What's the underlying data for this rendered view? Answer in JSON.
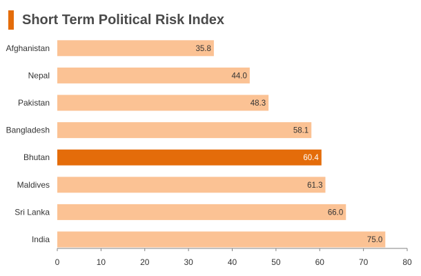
{
  "chart_data": {
    "type": "bar",
    "orientation": "horizontal",
    "title": "Short Term Political Risk Index",
    "categories": [
      "Afghanistan",
      "Nepal",
      "Pakistan",
      "Bangladesh",
      "Bhutan",
      "Maldives",
      "Sri Lanka",
      "India"
    ],
    "values": [
      35.8,
      44.0,
      48.3,
      58.1,
      60.4,
      61.3,
      66.0,
      75.0
    ],
    "value_labels": [
      "35.8",
      "44.0",
      "48.3",
      "58.1",
      "60.4",
      "61.3",
      "66.0",
      "75.0"
    ],
    "highlight": "Bhutan",
    "xlim": [
      0,
      80
    ],
    "xticks": [
      0,
      10,
      20,
      30,
      40,
      50,
      60,
      70,
      80
    ],
    "xlabel": "",
    "ylabel": "",
    "grid": false,
    "legend": "none"
  },
  "colors": {
    "bar": "#fbc294",
    "highlight": "#e46c0a",
    "title_accent": "#e46c0a",
    "axis": "#808080"
  }
}
